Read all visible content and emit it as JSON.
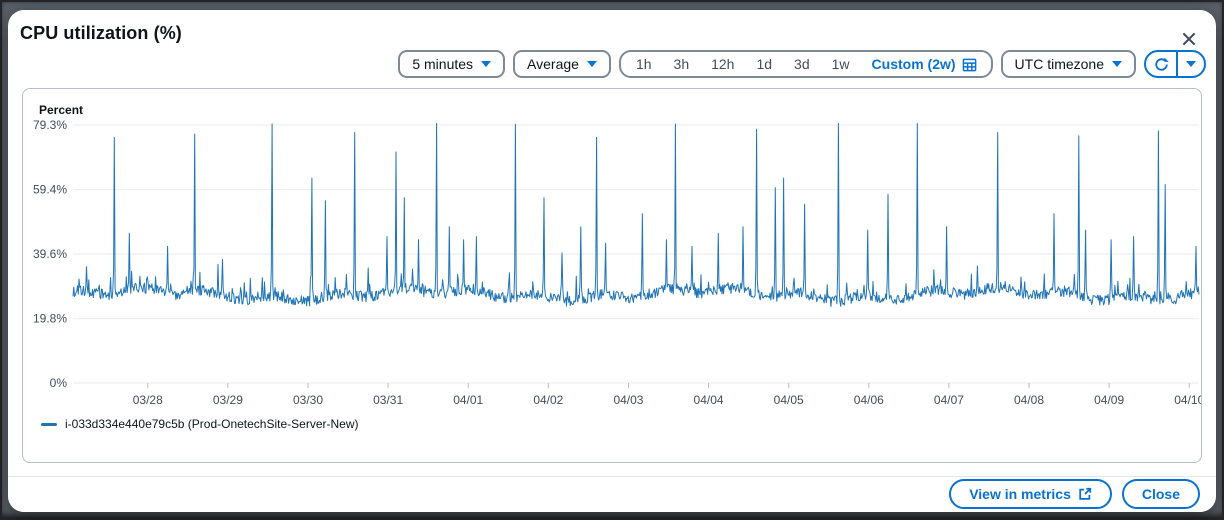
{
  "modal": {
    "title": "CPU utilization (%)"
  },
  "toolbar": {
    "period_select": {
      "value": "5 minutes"
    },
    "statistic_select": {
      "value": "Average"
    },
    "time_ranges": [
      "1h",
      "3h",
      "12h",
      "1d",
      "3d",
      "1w"
    ],
    "custom_range": {
      "label": "Custom (2w)"
    },
    "timezone_select": {
      "value": "UTC timezone"
    }
  },
  "chart_data": {
    "type": "line",
    "title": "CPU utilization (%)",
    "ylabel": "Percent",
    "ylim": [
      0,
      79.3
    ],
    "grid": true,
    "legend_position": "bottom",
    "yticks": [
      {
        "value": 79.3,
        "label": "79.3%"
      },
      {
        "value": 59.4,
        "label": "59.4%"
      },
      {
        "value": 39.6,
        "label": "39.6%"
      },
      {
        "value": 19.8,
        "label": "19.8%"
      },
      {
        "value": 0,
        "label": "0%"
      }
    ],
    "xticks": [
      "03/28",
      "03/29",
      "03/30",
      "03/31",
      "04/01",
      "04/02",
      "04/03",
      "04/04",
      "04/05",
      "04/06",
      "04/07",
      "04/08",
      "04/09",
      "04/10"
    ],
    "x_first_tick_frac": 0.0664,
    "x_tick_spacing_frac": 0.07115,
    "series": [
      {
        "name": "i-033d334e440e79c5b (Prod-OnetechSite-Server-New)",
        "color": "#2074b8",
        "statistic": "Average",
        "period": "5 minutes",
        "baseline_pct": 27.5,
        "noise_band_pct": [
          23,
          36
        ],
        "spikes": [
          [
            0.037,
            75.5
          ],
          [
            0.05,
            46
          ],
          [
            0.084,
            42
          ],
          [
            0.108,
            76.5
          ],
          [
            0.133,
            38
          ],
          [
            0.177,
            79.6
          ],
          [
            0.212,
            63
          ],
          [
            0.224,
            56
          ],
          [
            0.25,
            77
          ],
          [
            0.279,
            45
          ],
          [
            0.287,
            71
          ],
          [
            0.294,
            57
          ],
          [
            0.307,
            44
          ],
          [
            0.323,
            79.8
          ],
          [
            0.334,
            48
          ],
          [
            0.347,
            44
          ],
          [
            0.358,
            45
          ],
          [
            0.393,
            79.5
          ],
          [
            0.418,
            57
          ],
          [
            0.434,
            40
          ],
          [
            0.451,
            48
          ],
          [
            0.465,
            75.5
          ],
          [
            0.473,
            43
          ],
          [
            0.506,
            52
          ],
          [
            0.527,
            44
          ],
          [
            0.535,
            79.6
          ],
          [
            0.55,
            42
          ],
          [
            0.573,
            46
          ],
          [
            0.595,
            48
          ],
          [
            0.607,
            78
          ],
          [
            0.624,
            60
          ],
          [
            0.631,
            63
          ],
          [
            0.65,
            55
          ],
          [
            0.68,
            79.8
          ],
          [
            0.706,
            47
          ],
          [
            0.724,
            58
          ],
          [
            0.75,
            79.8
          ],
          [
            0.776,
            48
          ],
          [
            0.821,
            77
          ],
          [
            0.871,
            52
          ],
          [
            0.893,
            76
          ],
          [
            0.899,
            47
          ],
          [
            0.922,
            44
          ],
          [
            0.942,
            45
          ],
          [
            0.964,
            77.5
          ],
          [
            0.97,
            61
          ],
          [
            0.997,
            42
          ]
        ]
      }
    ]
  },
  "footer": {
    "view_in_metrics": "View in metrics",
    "close": "Close"
  },
  "colors": {
    "accent_blue": "#0972d3",
    "chart_line": "#2074b8",
    "grid_line": "#e9ebed",
    "backdrop": "#5b6169"
  }
}
